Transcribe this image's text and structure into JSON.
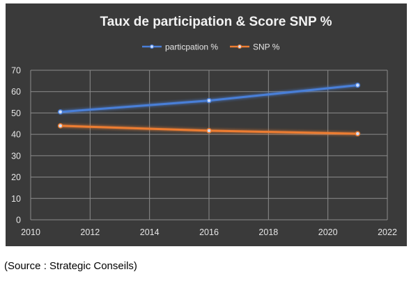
{
  "source_note": "(Source : Strategic Conseils)",
  "colors": {
    "background": "#3a3a3a",
    "grid": "#8c8c8c",
    "text": "#e6e6e6"
  },
  "chart_data": {
    "type": "line",
    "title": "Taux de participation & Score SNP %",
    "xlabel": "",
    "ylabel": "",
    "xlim": [
      2010,
      2022
    ],
    "ylim": [
      0,
      70
    ],
    "x_ticks": [
      2010,
      2012,
      2014,
      2016,
      2018,
      2020,
      2022
    ],
    "y_ticks": [
      0,
      10,
      20,
      30,
      40,
      50,
      60,
      70
    ],
    "grid": true,
    "legend_position": "top-center",
    "series": [
      {
        "name": "particpation %",
        "color": "#4a7fd8",
        "x": [
          2011,
          2016,
          2021
        ],
        "values": [
          50.5,
          55.8,
          63
        ]
      },
      {
        "name": "SNP %",
        "color": "#ed7d31",
        "x": [
          2011,
          2016,
          2021
        ],
        "values": [
          44,
          41.7,
          40.3
        ]
      }
    ]
  }
}
